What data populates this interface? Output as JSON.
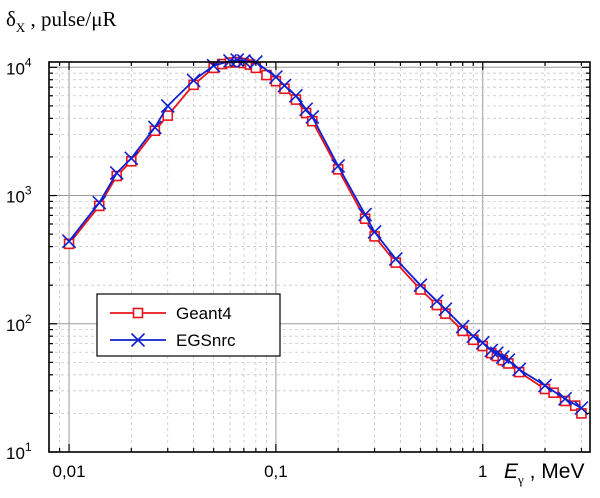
{
  "chart_data": {
    "type": "line",
    "title": "",
    "ylabel": {
      "main": "δ",
      "sub": "X",
      "unit": " , pulse/μR"
    },
    "xlabel": {
      "main": "E",
      "sub": "γ",
      "unit": " , MeV"
    },
    "x_scale": "log",
    "y_scale": "log",
    "xlim": [
      0.008,
      3.3
    ],
    "ylim": [
      10,
      11000
    ],
    "x_ticks": [
      {
        "value": 0.01,
        "label": "0,01"
      },
      {
        "value": 0.1,
        "label": "0,1"
      },
      {
        "value": 1,
        "label": "1"
      }
    ],
    "y_ticks": [
      {
        "value": 10,
        "base": "10",
        "exp": "1"
      },
      {
        "value": 100,
        "base": "10",
        "exp": "2"
      },
      {
        "value": 1000,
        "base": "10",
        "exp": "3"
      },
      {
        "value": 10000,
        "base": "10",
        "exp": "4"
      }
    ],
    "grid": true,
    "legend_position": "lower-left",
    "series": [
      {
        "name": "Geant4",
        "color": "#e8141b",
        "marker": "square",
        "points": [
          [
            0.01,
            420
          ],
          [
            0.014,
            830
          ],
          [
            0.017,
            1420
          ],
          [
            0.02,
            1850
          ],
          [
            0.026,
            3200
          ],
          [
            0.03,
            4200
          ],
          [
            0.04,
            7300
          ],
          [
            0.05,
            9900
          ],
          [
            0.055,
            10600
          ],
          [
            0.06,
            10900
          ],
          [
            0.065,
            11000
          ],
          [
            0.07,
            10800
          ],
          [
            0.075,
            10500
          ],
          [
            0.08,
            9900
          ],
          [
            0.09,
            8700
          ],
          [
            0.1,
            7800
          ],
          [
            0.11,
            6800
          ],
          [
            0.125,
            5600
          ],
          [
            0.14,
            4400
          ],
          [
            0.15,
            3800
          ],
          [
            0.2,
            1600
          ],
          [
            0.27,
            660
          ],
          [
            0.3,
            480
          ],
          [
            0.38,
            300
          ],
          [
            0.5,
            185
          ],
          [
            0.6,
            140
          ],
          [
            0.66,
            120
          ],
          [
            0.8,
            88
          ],
          [
            0.9,
            75
          ],
          [
            1.0,
            67
          ],
          [
            1.1,
            59
          ],
          [
            1.17,
            56
          ],
          [
            1.25,
            52
          ],
          [
            1.33,
            49
          ],
          [
            1.5,
            42
          ],
          [
            2.0,
            31
          ],
          [
            2.2,
            29
          ],
          [
            2.5,
            25
          ],
          [
            2.8,
            23
          ],
          [
            3.0,
            20
          ]
        ]
      },
      {
        "name": "EGSnrc",
        "color": "#1020d0",
        "marker": "x",
        "points": [
          [
            0.01,
            440
          ],
          [
            0.014,
            880
          ],
          [
            0.017,
            1500
          ],
          [
            0.02,
            1950
          ],
          [
            0.026,
            3400
          ],
          [
            0.03,
            5000
          ],
          [
            0.04,
            7900
          ],
          [
            0.05,
            10300
          ],
          [
            0.06,
            11200
          ],
          [
            0.065,
            11400
          ],
          [
            0.07,
            11200
          ],
          [
            0.08,
            11000
          ],
          [
            0.1,
            8400
          ],
          [
            0.11,
            7200
          ],
          [
            0.125,
            6000
          ],
          [
            0.14,
            4700
          ],
          [
            0.15,
            4100
          ],
          [
            0.2,
            1700
          ],
          [
            0.27,
            710
          ],
          [
            0.3,
            520
          ],
          [
            0.38,
            320
          ],
          [
            0.5,
            200
          ],
          [
            0.6,
            150
          ],
          [
            0.66,
            130
          ],
          [
            0.8,
            95
          ],
          [
            0.9,
            80
          ],
          [
            1.0,
            71
          ],
          [
            1.1,
            62
          ],
          [
            1.17,
            59
          ],
          [
            1.25,
            55
          ],
          [
            1.33,
            52
          ],
          [
            1.5,
            44
          ],
          [
            2.0,
            33
          ],
          [
            2.5,
            26
          ],
          [
            3.0,
            22
          ]
        ]
      }
    ]
  }
}
